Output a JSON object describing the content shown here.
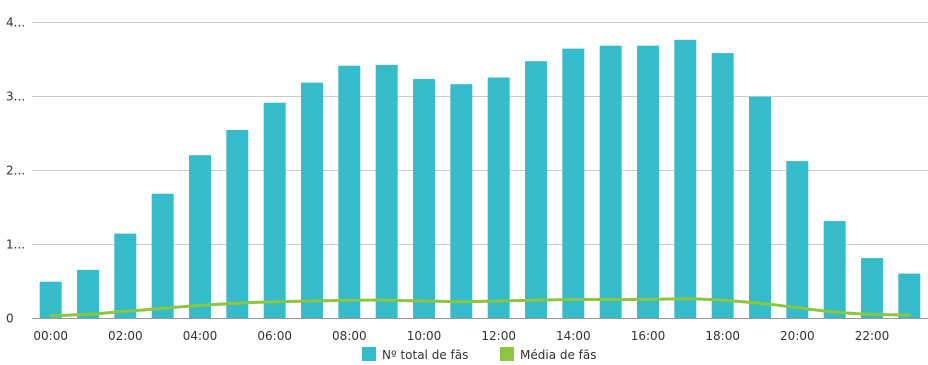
{
  "chart_data": {
    "type": "bar",
    "categories": [
      "00:00",
      "01:00",
      "02:00",
      "03:00",
      "04:00",
      "05:00",
      "06:00",
      "07:00",
      "08:00",
      "09:00",
      "10:00",
      "11:00",
      "12:00",
      "13:00",
      "14:00",
      "15:00",
      "16:00",
      "17:00",
      "18:00",
      "19:00",
      "20:00",
      "21:00",
      "22:00",
      "23:00"
    ],
    "x_tick_labels": [
      "00:00",
      "02:00",
      "04:00",
      "06:00",
      "08:00",
      "10:00",
      "12:00",
      "14:00",
      "16:00",
      "18:00",
      "20:00",
      "22:00"
    ],
    "y_tick_labels": [
      "0",
      "1...",
      "2...",
      "3...",
      "4..."
    ],
    "ylim": [
      0,
      4
    ],
    "grid": true,
    "legend_position": "bottom",
    "series": [
      {
        "name": "Nº total de fãs",
        "type": "bar",
        "color": "#35bccb",
        "values": [
          0.49,
          0.65,
          1.14,
          1.68,
          2.2,
          2.54,
          2.91,
          3.18,
          3.41,
          3.42,
          3.23,
          3.16,
          3.25,
          3.47,
          3.64,
          3.68,
          3.68,
          3.76,
          3.58,
          2.99,
          2.12,
          1.31,
          0.81,
          0.6
        ]
      },
      {
        "name": "Média de fãs",
        "type": "line",
        "color": "#8cc63f",
        "values": [
          0.03,
          0.05,
          0.09,
          0.13,
          0.17,
          0.2,
          0.22,
          0.23,
          0.24,
          0.24,
          0.23,
          0.22,
          0.23,
          0.24,
          0.25,
          0.25,
          0.25,
          0.26,
          0.24,
          0.2,
          0.14,
          0.08,
          0.05,
          0.04
        ]
      }
    ]
  }
}
